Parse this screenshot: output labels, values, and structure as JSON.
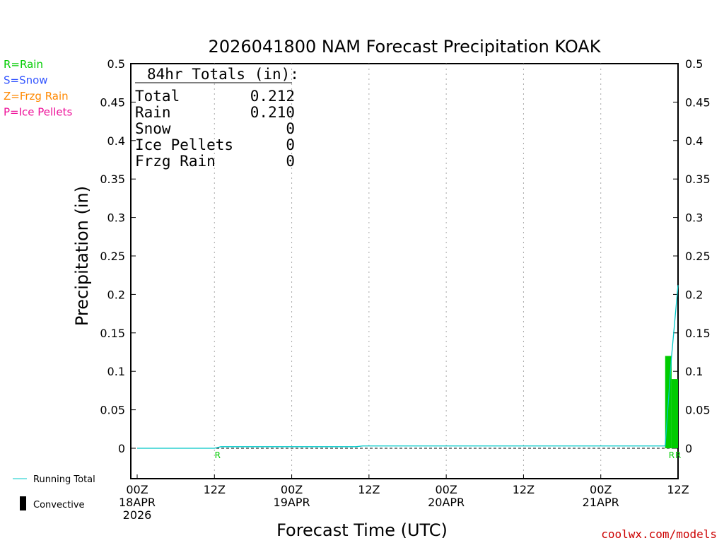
{
  "chart_data": {
    "type": "bar",
    "title": "2026041800 NAM Forecast Precipitation KOAK",
    "xlabel": "Forecast Time (UTC)",
    "ylabel": "Precipitation (in)",
    "ylim": [
      0,
      0.5
    ],
    "y_ticks": [
      "0",
      "0.05",
      "0.1",
      "0.15",
      "0.2",
      "0.25",
      "0.3",
      "0.35",
      "0.4",
      "0.45",
      "0.5"
    ],
    "x_range_hours": [
      0,
      84
    ],
    "x_ticks": [
      {
        "hour": 0,
        "lines": [
          "00Z",
          "18APR",
          "2026"
        ]
      },
      {
        "hour": 12,
        "lines": [
          "12Z"
        ]
      },
      {
        "hour": 24,
        "lines": [
          "00Z",
          "19APR"
        ]
      },
      {
        "hour": 36,
        "lines": [
          "12Z"
        ]
      },
      {
        "hour": 48,
        "lines": [
          "00Z",
          "20APR"
        ]
      },
      {
        "hour": 60,
        "lines": [
          "12Z"
        ]
      },
      {
        "hour": 72,
        "lines": [
          "00Z",
          "21APR"
        ]
      },
      {
        "hour": 84,
        "lines": [
          "12Z"
        ]
      }
    ],
    "grid": "vertical dotted at 12-hour intervals",
    "bars": [
      {
        "hour_start": 82,
        "hour_end": 83,
        "value": 0.12,
        "color": "#00cc00"
      },
      {
        "hour_start": 83,
        "hour_end": 84,
        "value": 0.09,
        "color": "#00cc00"
      }
    ],
    "running_total": {
      "name": "Running Total",
      "color": "#00c8c8",
      "points": [
        [
          0,
          0
        ],
        [
          12,
          0
        ],
        [
          13,
          0.002
        ],
        [
          34,
          0.002
        ],
        [
          35,
          0.003
        ],
        [
          82,
          0.003
        ],
        [
          83,
          0.12
        ],
        [
          84,
          0.212
        ]
      ]
    },
    "precip_type_markers": [
      {
        "hour": 12.5,
        "label": "R",
        "color": "#00cc00"
      },
      {
        "hour": 83.0,
        "label": "R",
        "color": "#00cc00"
      },
      {
        "hour": 84.0,
        "label": "R",
        "color": "#00cc00"
      }
    ],
    "type_legend": [
      {
        "label": "R=Rain",
        "color": "#00cc00"
      },
      {
        "label": "S=Snow",
        "color": "#3355ff"
      },
      {
        "label": "Z=Frzg Rain",
        "color": "#ff8800"
      },
      {
        "label": "P=Ice Pellets",
        "color": "#ee1199"
      }
    ],
    "bottom_legend": {
      "running_total": "Running Total",
      "convective": "Convective"
    },
    "totals_box": {
      "header": "84hr Totals (in):",
      "rows": [
        {
          "label": "Total",
          "value": "0.212"
        },
        {
          "label": "Rain",
          "value": "0.210"
        },
        {
          "label": "Snow",
          "value": "0"
        },
        {
          "label": "Ice Pellets",
          "value": "0"
        },
        {
          "label": "Frzg Rain",
          "value": "0"
        }
      ]
    },
    "credit": "coolwx.com/models"
  }
}
